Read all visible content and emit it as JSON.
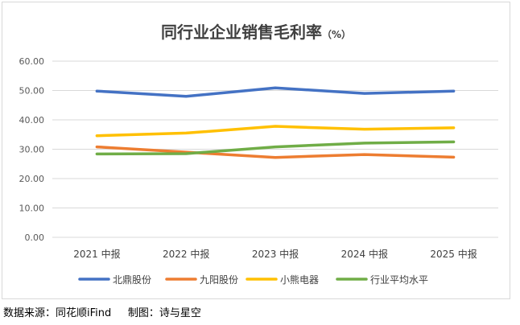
{
  "chart_data": {
    "type": "line",
    "title": "同行业企业销售毛利率",
    "title_suffix": "（%）",
    "categories": [
      "2021 中报",
      "2022 中报",
      "2023 中报",
      "2024 中报",
      "2025 中报"
    ],
    "y_ticks": [
      "0.00",
      "10.00",
      "20.00",
      "30.00",
      "40.00",
      "50.00",
      "60.00"
    ],
    "ylim": [
      0,
      60
    ],
    "grid": true,
    "legend_position": "bottom",
    "series": [
      {
        "name": "北鼎股份",
        "color": "#4472c4",
        "values": [
          49.8,
          48.0,
          50.9,
          49.0,
          49.8
        ]
      },
      {
        "name": "九阳股份",
        "color": "#ed7d31",
        "values": [
          30.8,
          29.0,
          27.2,
          28.2,
          27.3
        ]
      },
      {
        "name": "小熊电器",
        "color": "#ffc000",
        "values": [
          34.6,
          35.5,
          37.8,
          36.8,
          37.3
        ]
      },
      {
        "name": "行业平均水平",
        "color": "#70ad47",
        "values": [
          28.4,
          28.5,
          30.8,
          32.1,
          32.5
        ]
      }
    ]
  },
  "footer": {
    "source": "数据来源：同花顺iFind",
    "author": "制图：诗与星空"
  }
}
